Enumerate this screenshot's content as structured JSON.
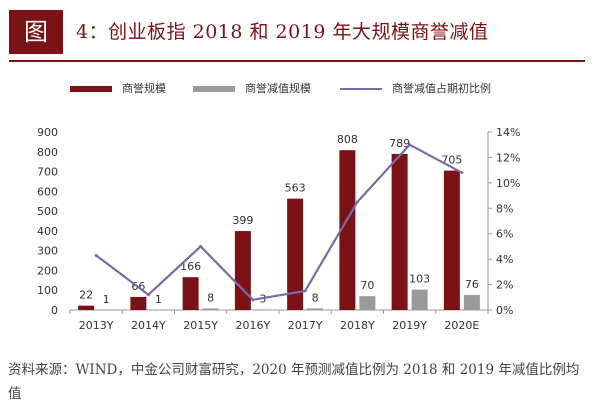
{
  "figure": {
    "label": "图",
    "title": "4：创业板指 2018 和 2019 年大规模商誉减值"
  },
  "colors": {
    "brand": "#7b1316",
    "bar_goodwill": "#7b1316",
    "bar_impairment": "#9a9a9a",
    "line_ratio": "#7b6aa6"
  },
  "chart_data": {
    "type": "bar",
    "categories": [
      "2013Y",
      "2014Y",
      "2015Y",
      "2016Y",
      "2017Y",
      "2018Y",
      "2019Y",
      "2020E"
    ],
    "series": [
      {
        "name": "商誉规模",
        "type": "bar",
        "axis": "left",
        "values": [
          22,
          66,
          166,
          399,
          563,
          808,
          789,
          705
        ]
      },
      {
        "name": "商誉减值规模",
        "type": "bar",
        "axis": "left",
        "values": [
          1,
          1,
          8,
          3,
          8,
          70,
          103,
          76
        ]
      },
      {
        "name": "商誉减值占期初比例",
        "type": "line",
        "axis": "right",
        "values": [
          4.3,
          1.2,
          5.0,
          0.8,
          1.5,
          8.5,
          13.0,
          10.8
        ]
      }
    ],
    "y_left": {
      "ylim": [
        0,
        900
      ],
      "ticks": [
        "0",
        "100",
        "200",
        "300",
        "400",
        "500",
        "600",
        "700",
        "800",
        "900"
      ]
    },
    "y_right": {
      "ylim": [
        0,
        14
      ],
      "ticks": [
        "0%",
        "2%",
        "4%",
        "6%",
        "8%",
        "10%",
        "12%",
        "14%"
      ]
    },
    "grid": false,
    "legend_position": "top"
  },
  "source_note": "资料来源：WIND，中金公司财富研究，2020 年预测减值比例为 2018 和 2019 年减值比例均值"
}
